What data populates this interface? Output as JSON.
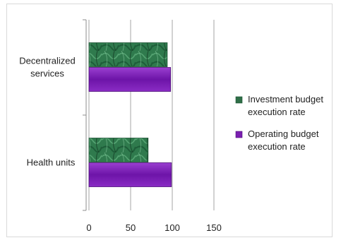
{
  "chart_data": {
    "type": "bar",
    "orientation": "horizontal",
    "categories": [
      [
        "Health units"
      ],
      [
        "Decentralized",
        "services"
      ]
    ],
    "series": [
      {
        "name": [
          "Investment budget",
          "execution rate"
        ],
        "values": [
          71,
          94
        ],
        "color": "#2e7d4f"
      },
      {
        "name": [
          "Operating budget",
          "execution rate"
        ],
        "values": [
          99,
          98
        ],
        "color": "#7a1fb0"
      }
    ],
    "xlim": [
      0,
      150
    ],
    "xticks": [
      "0",
      "50",
      "100",
      "150"
    ],
    "grid": true,
    "legend": "right",
    "title": "",
    "xlabel": "",
    "ylabel": ""
  }
}
